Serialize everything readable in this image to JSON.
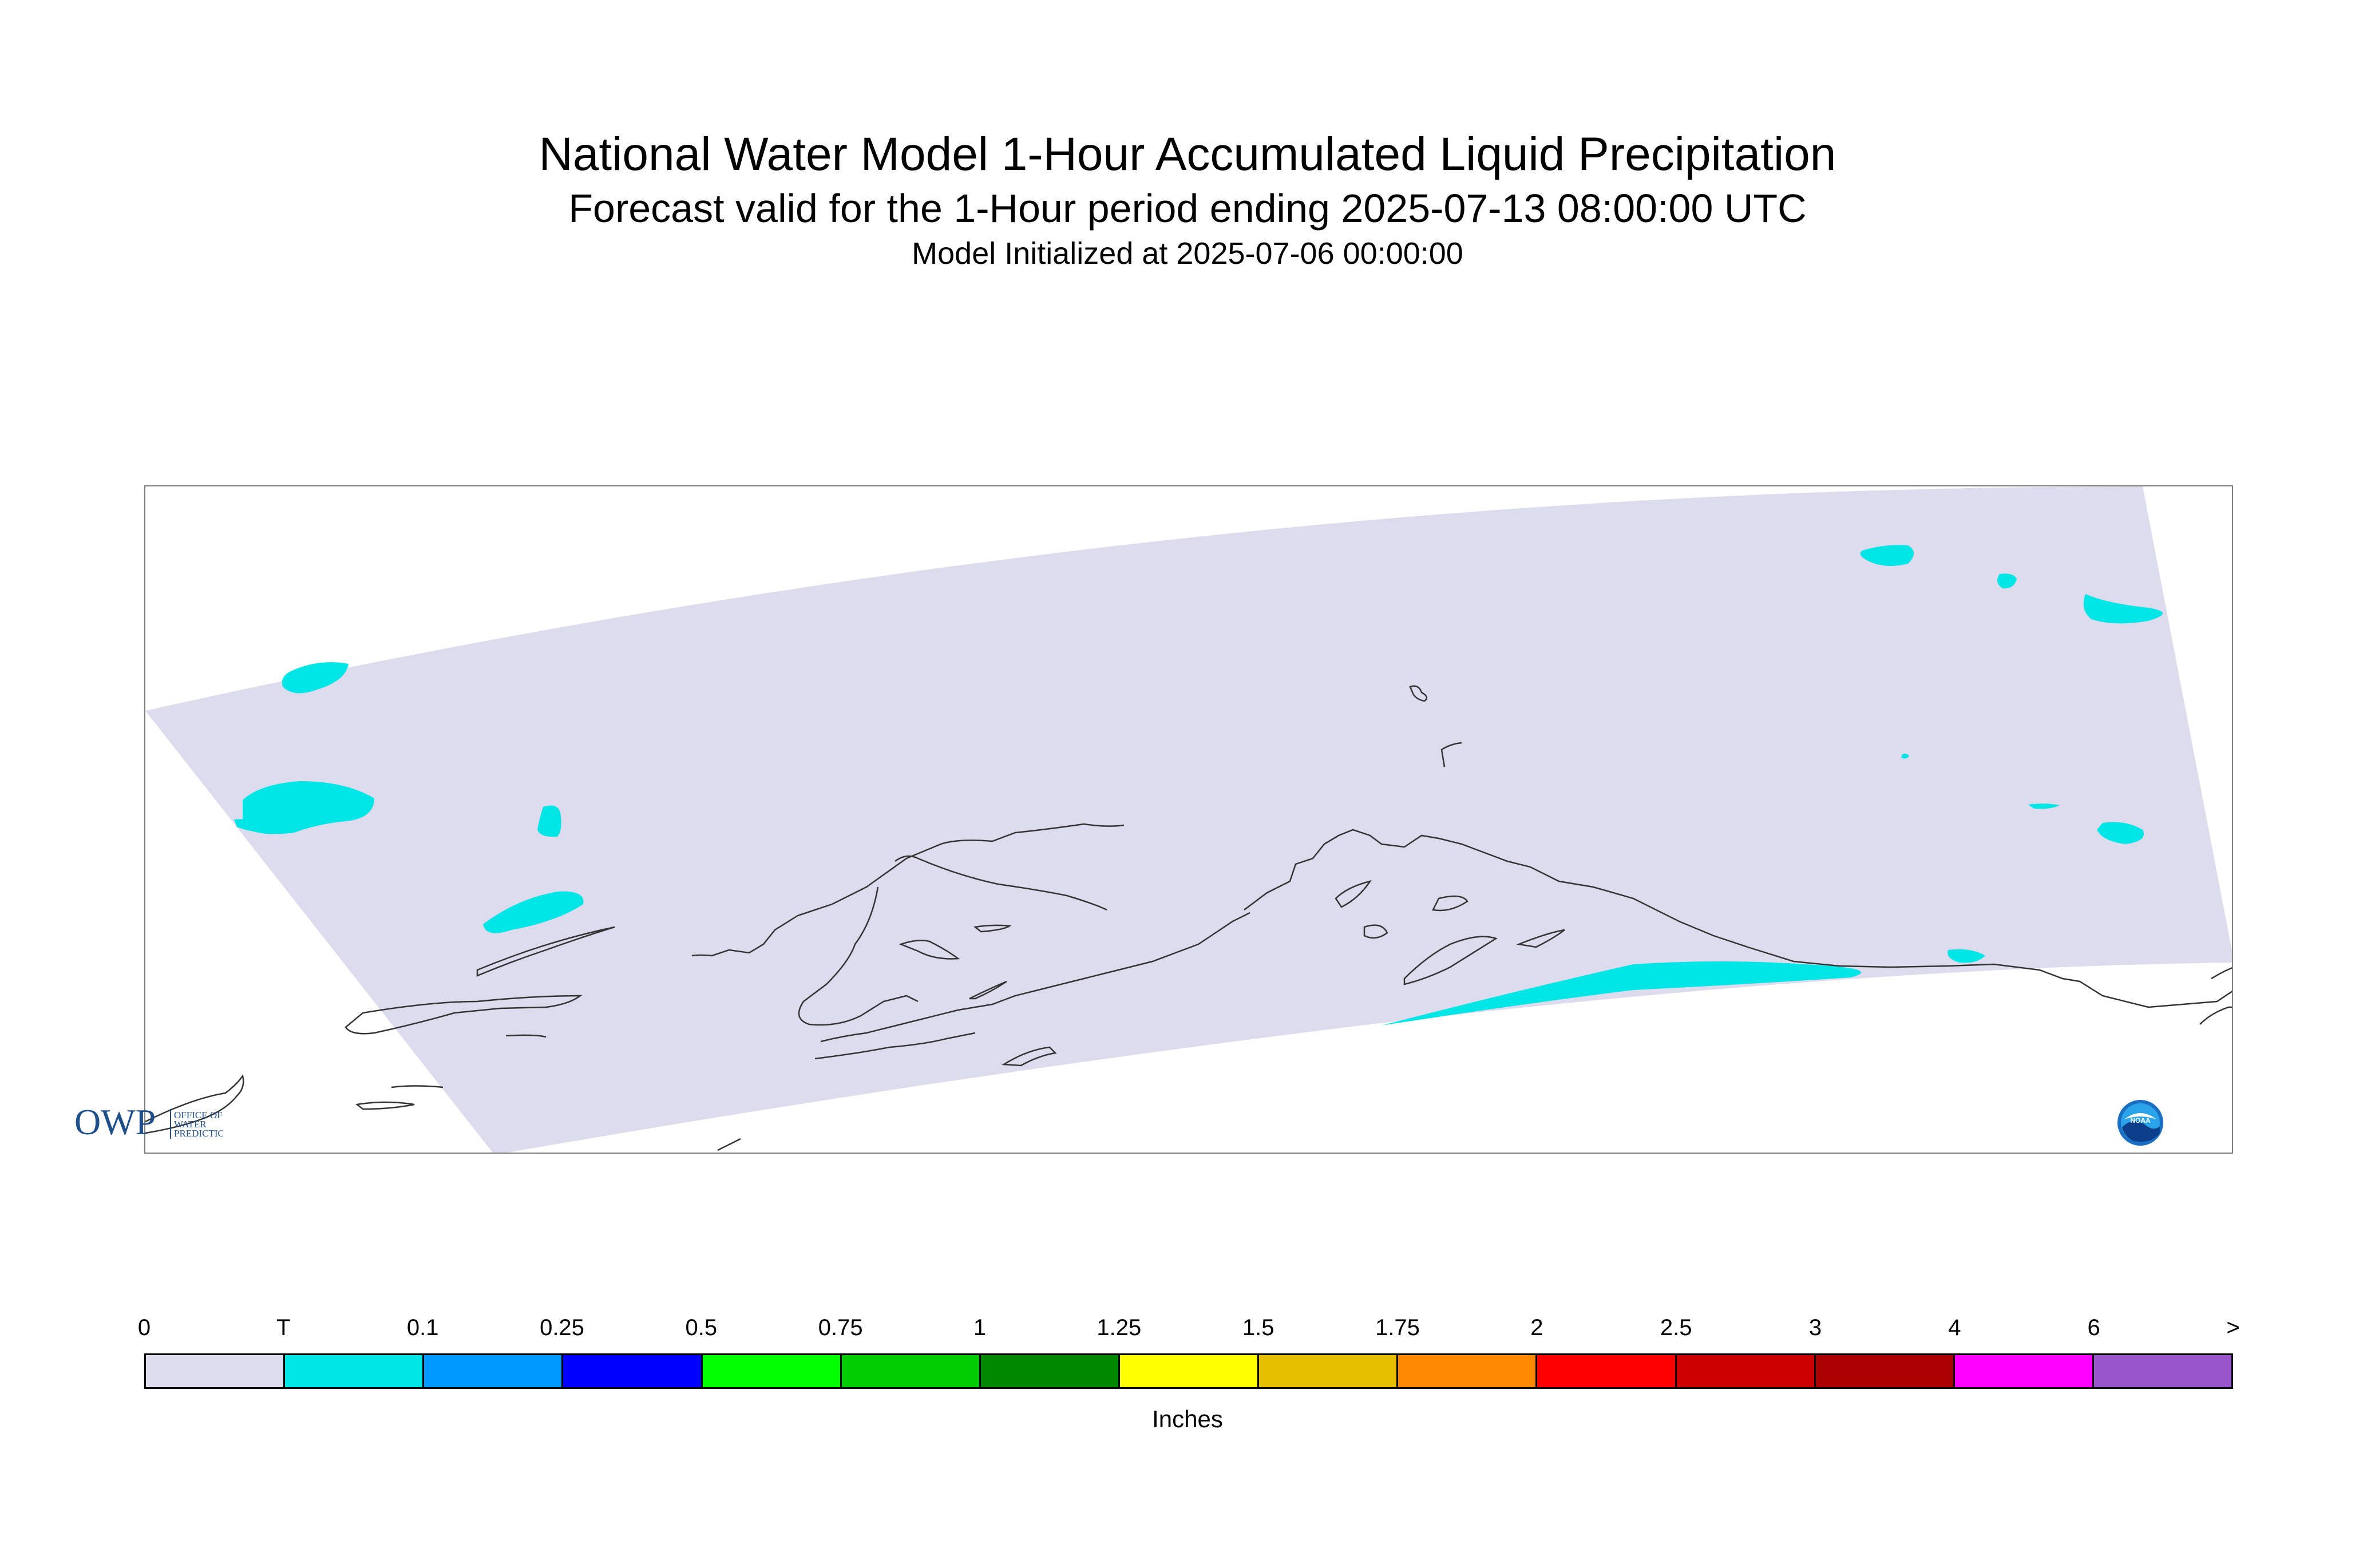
{
  "header": {
    "title": "National Water Model 1-Hour Accumulated Liquid Precipitation",
    "subtitle": "Forecast valid for the 1-Hour period ending 2025-07-13 08:00:00 UTC",
    "init": "Model Initialized at 2025-07-06 00:00:00"
  },
  "map": {
    "domain_fill_color": "#dcdcee",
    "precip_color": "#00e5e5",
    "coastline_color": "#333333"
  },
  "logos": {
    "owp": {
      "text": "OWP",
      "sub1": "OFFICE OF",
      "sub2": "WATER",
      "sub3": "PREDICTION"
    },
    "noaa": {
      "text": "NOAA"
    }
  },
  "legend": {
    "units": "Inches",
    "ticks": [
      "0",
      "T",
      "0.1",
      "0.25",
      "0.5",
      "0.75",
      "1",
      "1.25",
      "1.5",
      "1.75",
      "2",
      "2.5",
      "3",
      "4",
      "6",
      ">"
    ],
    "colors": [
      "#dcdcee",
      "#00e5e5",
      "#0099ff",
      "#0000ff",
      "#00ff00",
      "#00cc00",
      "#008800",
      "#ffff00",
      "#e6c000",
      "#ff8800",
      "#ff0000",
      "#cc0000",
      "#aa0000",
      "#ff00ff",
      "#9955cc"
    ]
  }
}
